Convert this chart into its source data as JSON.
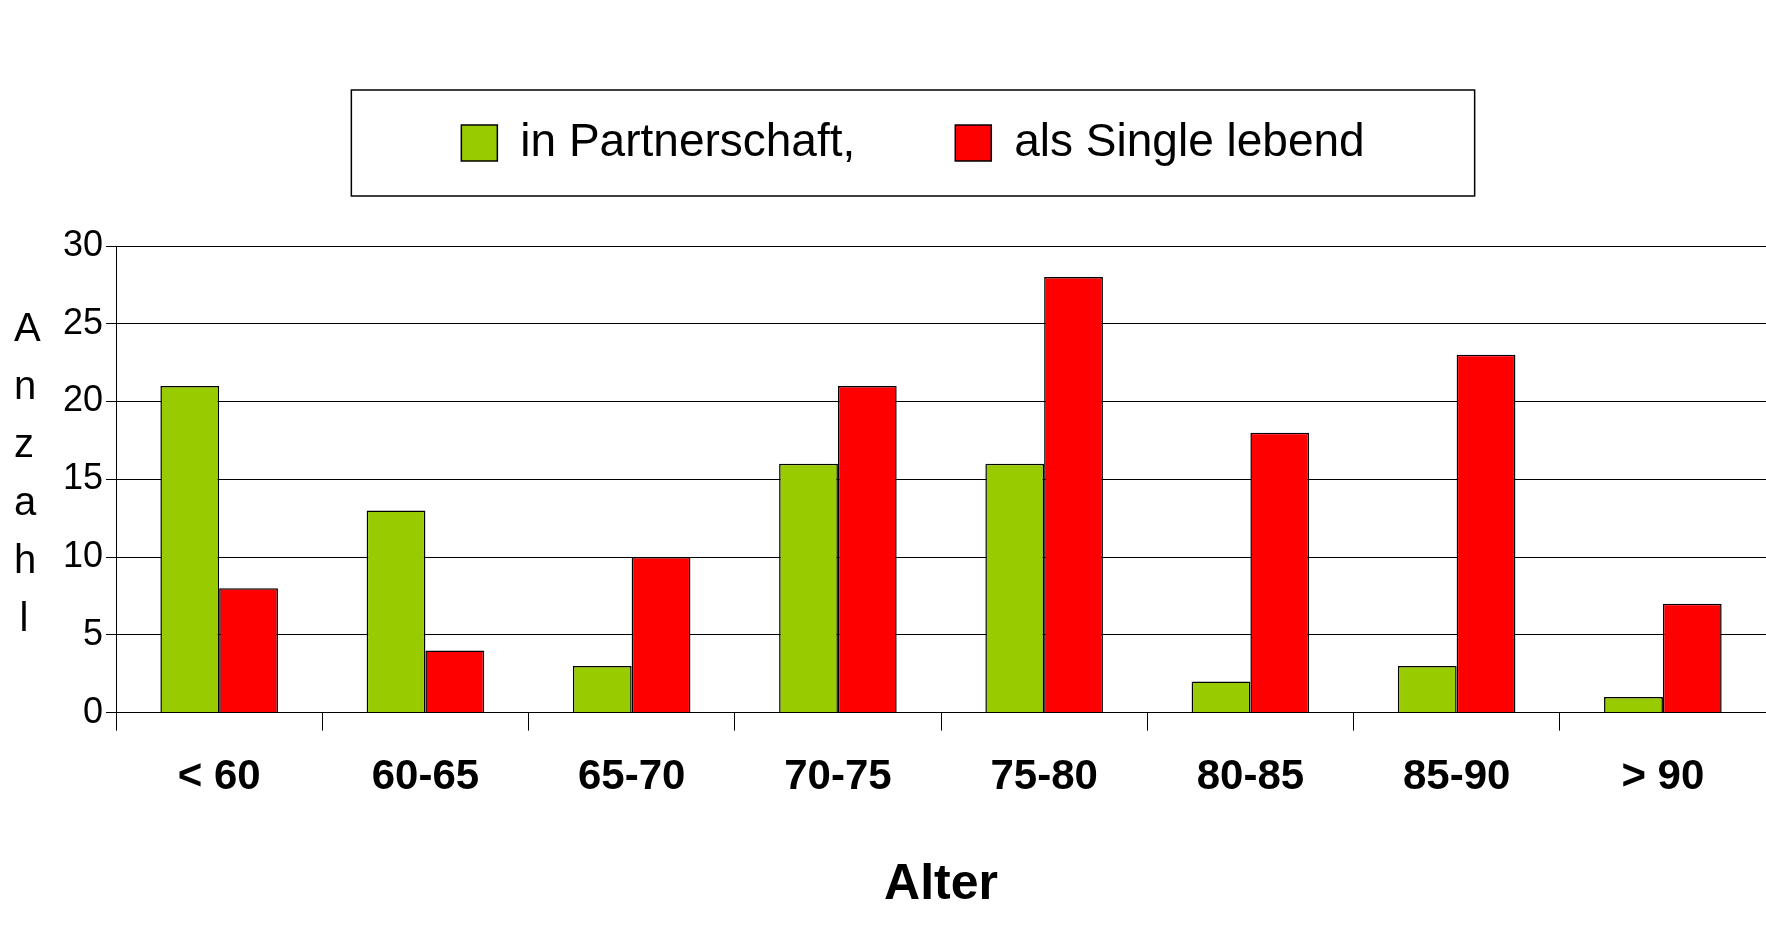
{
  "chart_data": {
    "type": "bar",
    "xlabel": "Alter",
    "ylabel": "Anzahl",
    "categories": [
      "< 60",
      "60-65",
      "65-70",
      "70-75",
      "75-80",
      "80-85",
      "85-90",
      "> 90"
    ],
    "series": [
      {
        "name": "in Partnerschaft,",
        "color": "#99cc00",
        "values": [
          21,
          13,
          3,
          16,
          16,
          2,
          3,
          1
        ]
      },
      {
        "name": "als Single lebend",
        "color": "#ff0000",
        "values": [
          8,
          4,
          10,
          21,
          28,
          18,
          23,
          7
        ]
      }
    ],
    "ylim": [
      0,
      30
    ],
    "yticks": [
      0,
      5,
      10,
      15,
      20,
      25,
      30
    ],
    "grid": "y",
    "legend": "top"
  }
}
